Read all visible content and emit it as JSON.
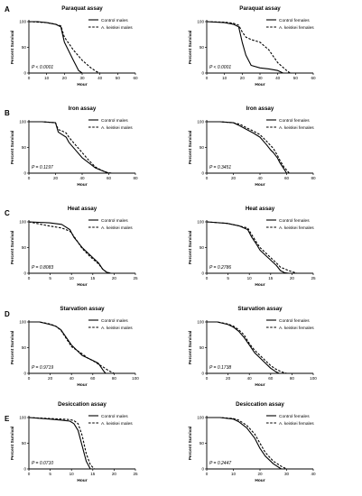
{
  "panel_letters": [
    "A",
    "B",
    "C",
    "D",
    "E"
  ],
  "chart_data": [
    {
      "type": "line",
      "row": 0,
      "col": 0,
      "title": "Paraquat assay",
      "xlabel": "Hour",
      "ylabel": "Percent Survival",
      "xlim": [
        0,
        60
      ],
      "ylim": [
        0,
        100
      ],
      "xticks": [
        "0",
        "10",
        "20",
        "30",
        "40",
        "50",
        "60"
      ],
      "yticks": [
        "0",
        "50",
        "100"
      ],
      "annotation": "P < 0.0001",
      "series": [
        {
          "name": "Control males",
          "style": "solid",
          "x": [
            0,
            5,
            10,
            15,
            18,
            20,
            25,
            28,
            30
          ],
          "y": [
            100,
            100,
            98,
            95,
            90,
            60,
            25,
            5,
            0
          ]
        },
        {
          "name": "A. keiskei males",
          "style": "dashed",
          "x": [
            0,
            10,
            15,
            18,
            20,
            25,
            30,
            35,
            38,
            40
          ],
          "y": [
            100,
            98,
            95,
            92,
            70,
            45,
            25,
            10,
            3,
            0
          ]
        }
      ]
    },
    {
      "type": "line",
      "row": 0,
      "col": 1,
      "title": "Paraquat assay",
      "xlabel": "Hour",
      "ylabel": "Percent Survival",
      "xlim": [
        0,
        60
      ],
      "ylim": [
        0,
        100
      ],
      "xticks": [
        "0",
        "10",
        "20",
        "30",
        "40",
        "50",
        "60"
      ],
      "yticks": [
        "0",
        "50",
        "100"
      ],
      "annotation": "P < 0.0001",
      "series": [
        {
          "name": "Control females",
          "style": "solid",
          "x": [
            0,
            10,
            15,
            18,
            20,
            22,
            25,
            30,
            35,
            40,
            43
          ],
          "y": [
            100,
            98,
            95,
            90,
            60,
            35,
            15,
            10,
            8,
            5,
            0
          ]
        },
        {
          "name": "A. keiskei females",
          "style": "dashed",
          "x": [
            0,
            10,
            15,
            18,
            20,
            22,
            25,
            30,
            35,
            40,
            45,
            47
          ],
          "y": [
            100,
            99,
            97,
            93,
            80,
            70,
            65,
            60,
            45,
            20,
            5,
            0
          ]
        }
      ]
    },
    {
      "type": "line",
      "row": 1,
      "col": 0,
      "title": "Iron assay",
      "xlabel": "Hour",
      "ylabel": "Percent Survival",
      "xlim": [
        0,
        80
      ],
      "ylim": [
        0,
        100
      ],
      "xticks": [
        "0",
        "20",
        "40",
        "60",
        "80"
      ],
      "yticks": [
        "0",
        "50",
        "100"
      ],
      "annotation": "P = 0.1197",
      "series": [
        {
          "name": "Control males",
          "style": "solid",
          "x": [
            0,
            10,
            20,
            22,
            25,
            28,
            30,
            35,
            40,
            45,
            50,
            55,
            58,
            60
          ],
          "y": [
            100,
            100,
            98,
            80,
            75,
            70,
            60,
            45,
            30,
            20,
            10,
            5,
            2,
            0
          ]
        },
        {
          "name": "A. keiskei males",
          "style": "dashed",
          "x": [
            0,
            10,
            20,
            22,
            25,
            28,
            30,
            35,
            40,
            45,
            50,
            55,
            58,
            62
          ],
          "y": [
            100,
            100,
            98,
            85,
            82,
            78,
            70,
            55,
            40,
            25,
            12,
            5,
            2,
            0
          ]
        }
      ]
    },
    {
      "type": "line",
      "row": 1,
      "col": 1,
      "title": "Iron assay",
      "xlabel": "Hour",
      "ylabel": "Percent Survival",
      "xlim": [
        0,
        80
      ],
      "ylim": [
        0,
        100
      ],
      "xticks": [
        "0",
        "20",
        "40",
        "60",
        "80"
      ],
      "yticks": [
        "0",
        "50",
        "100"
      ],
      "annotation": "P = 0.3451",
      "series": [
        {
          "name": "Control females",
          "style": "solid",
          "x": [
            0,
            10,
            20,
            25,
            30,
            35,
            40,
            45,
            48,
            50,
            53,
            55,
            58,
            60
          ],
          "y": [
            100,
            100,
            98,
            92,
            85,
            78,
            70,
            55,
            45,
            40,
            30,
            20,
            8,
            0
          ]
        },
        {
          "name": "A. keiskei females",
          "style": "dashed",
          "x": [
            0,
            10,
            20,
            25,
            30,
            35,
            40,
            45,
            50,
            53,
            55,
            58,
            62
          ],
          "y": [
            100,
            100,
            98,
            95,
            88,
            82,
            75,
            62,
            48,
            35,
            25,
            12,
            0
          ]
        }
      ]
    },
    {
      "type": "line",
      "row": 2,
      "col": 0,
      "title": "Heat assay",
      "xlabel": "Hour",
      "ylabel": "Percent Survival",
      "xlim": [
        0,
        26
      ],
      "ylim": [
        0,
        100
      ],
      "xticks": [
        "0",
        "5",
        "10",
        "15",
        "20",
        "25"
      ],
      "yticks": [
        "0",
        "50",
        "100"
      ],
      "annotation": "P = 0.8083",
      "series": [
        {
          "name": "Control males",
          "style": "solid",
          "x": [
            0,
            5,
            8,
            10,
            11,
            12,
            13,
            15,
            17,
            18,
            19,
            20
          ],
          "y": [
            100,
            98,
            95,
            85,
            70,
            60,
            50,
            35,
            20,
            8,
            2,
            0
          ]
        },
        {
          "name": "A. keiskei males",
          "style": "dashed",
          "x": [
            0,
            3,
            5,
            8,
            10,
            11,
            12,
            13,
            15,
            17,
            18,
            19,
            20
          ],
          "y": [
            100,
            95,
            92,
            88,
            82,
            72,
            60,
            48,
            32,
            18,
            8,
            2,
            0
          ]
        }
      ]
    },
    {
      "type": "line",
      "row": 2,
      "col": 1,
      "title": "Heat assay",
      "xlabel": "Hour",
      "ylabel": "Percent Survival",
      "xlim": [
        0,
        26
      ],
      "ylim": [
        0,
        100
      ],
      "xticks": [
        "0",
        "5",
        "10",
        "15",
        "20",
        "25"
      ],
      "yticks": [
        "0",
        "50",
        "100"
      ],
      "annotation": "P = 0.2786",
      "series": [
        {
          "name": "Control females",
          "style": "solid",
          "x": [
            0,
            5,
            8,
            10,
            11,
            12,
            13,
            15,
            17,
            18,
            19,
            20
          ],
          "y": [
            100,
            97,
            92,
            85,
            70,
            58,
            45,
            30,
            15,
            5,
            1,
            0
          ]
        },
        {
          "name": "A. keiskei females",
          "style": "dashed",
          "x": [
            0,
            5,
            8,
            10,
            11,
            12,
            13,
            15,
            17,
            18,
            20,
            22
          ],
          "y": [
            100,
            97,
            92,
            88,
            75,
            62,
            50,
            35,
            20,
            12,
            5,
            0
          ]
        }
      ]
    },
    {
      "type": "line",
      "row": 3,
      "col": 0,
      "title": "Starvation assay",
      "xlabel": "Hour",
      "ylabel": "Percent Survival",
      "xlim": [
        0,
        100
      ],
      "ylim": [
        0,
        100
      ],
      "xticks": [
        "0",
        "20",
        "40",
        "60",
        "80",
        "100"
      ],
      "yticks": [
        "0",
        "50",
        "100"
      ],
      "annotation": "P = 0.9719",
      "series": [
        {
          "name": "Control males",
          "style": "solid",
          "x": [
            0,
            10,
            20,
            25,
            30,
            35,
            40,
            45,
            50,
            55,
            60,
            65,
            70,
            72
          ],
          "y": [
            100,
            100,
            95,
            92,
            85,
            70,
            55,
            45,
            35,
            30,
            25,
            20,
            5,
            0
          ]
        },
        {
          "name": "A. keiskei males",
          "style": "dashed",
          "x": [
            0,
            10,
            20,
            25,
            30,
            35,
            40,
            45,
            50,
            55,
            60,
            65,
            70,
            75,
            80
          ],
          "y": [
            100,
            100,
            96,
            92,
            84,
            68,
            52,
            45,
            38,
            30,
            25,
            18,
            12,
            5,
            0
          ]
        }
      ]
    },
    {
      "type": "line",
      "row": 3,
      "col": 1,
      "title": "Starvation assay",
      "xlabel": "Hour",
      "ylabel": "Percent Survival",
      "xlim": [
        0,
        100
      ],
      "ylim": [
        0,
        100
      ],
      "xticks": [
        "0",
        "20",
        "40",
        "60",
        "80",
        "100"
      ],
      "yticks": [
        "0",
        "50",
        "100"
      ],
      "annotation": "P = 0.1738",
      "series": [
        {
          "name": "Control females",
          "style": "solid",
          "x": [
            0,
            10,
            20,
            25,
            30,
            35,
            40,
            45,
            50,
            55,
            60,
            65,
            68
          ],
          "y": [
            100,
            100,
            95,
            90,
            82,
            70,
            55,
            40,
            30,
            20,
            10,
            3,
            0
          ]
        },
        {
          "name": "A. keiskei females",
          "style": "dashed",
          "x": [
            0,
            10,
            20,
            25,
            30,
            35,
            40,
            45,
            50,
            55,
            60,
            65,
            70,
            75
          ],
          "y": [
            100,
            100,
            96,
            92,
            85,
            75,
            58,
            45,
            35,
            25,
            15,
            8,
            3,
            0
          ]
        }
      ]
    },
    {
      "type": "line",
      "row": 4,
      "col": 0,
      "title": "Desiccation assay",
      "xlabel": "Hour",
      "ylabel": "Percent Survival",
      "xlim": [
        0,
        26
      ],
      "ylim": [
        0,
        100
      ],
      "xticks": [
        "0",
        "5",
        "10",
        "15",
        "20",
        "25"
      ],
      "yticks": [
        "0",
        "50",
        "100"
      ],
      "annotation": "P = 0.0710",
      "series": [
        {
          "name": "Control males",
          "style": "solid",
          "x": [
            0,
            5,
            8,
            10,
            11,
            12,
            13,
            14,
            15
          ],
          "y": [
            100,
            97,
            95,
            93,
            88,
            75,
            45,
            15,
            0
          ]
        },
        {
          "name": "A. keiskei males",
          "style": "dashed",
          "x": [
            0,
            5,
            8,
            10,
            11,
            12,
            13,
            14,
            15,
            16
          ],
          "y": [
            100,
            98,
            97,
            96,
            94,
            88,
            65,
            30,
            8,
            0
          ]
        }
      ]
    },
    {
      "type": "line",
      "row": 4,
      "col": 1,
      "title": "Desiccation assay",
      "xlabel": "Hour",
      "ylabel": "Percent Survival",
      "xlim": [
        0,
        40
      ],
      "ylim": [
        0,
        100
      ],
      "xticks": [
        "0",
        "10",
        "20",
        "30",
        "40"
      ],
      "yticks": [
        "0",
        "50",
        "100"
      ],
      "annotation": "P = 0.2447",
      "series": [
        {
          "name": "Control females",
          "style": "solid",
          "x": [
            0,
            5,
            10,
            12,
            15,
            18,
            20,
            22,
            25,
            28
          ],
          "y": [
            100,
            100,
            97,
            92,
            80,
            60,
            40,
            25,
            10,
            0
          ]
        },
        {
          "name": "A. keiskei females",
          "style": "dashed",
          "x": [
            0,
            5,
            10,
            12,
            15,
            18,
            20,
            22,
            25,
            28,
            30
          ],
          "y": [
            100,
            100,
            98,
            95,
            85,
            68,
            50,
            32,
            15,
            5,
            0
          ]
        }
      ]
    }
  ]
}
